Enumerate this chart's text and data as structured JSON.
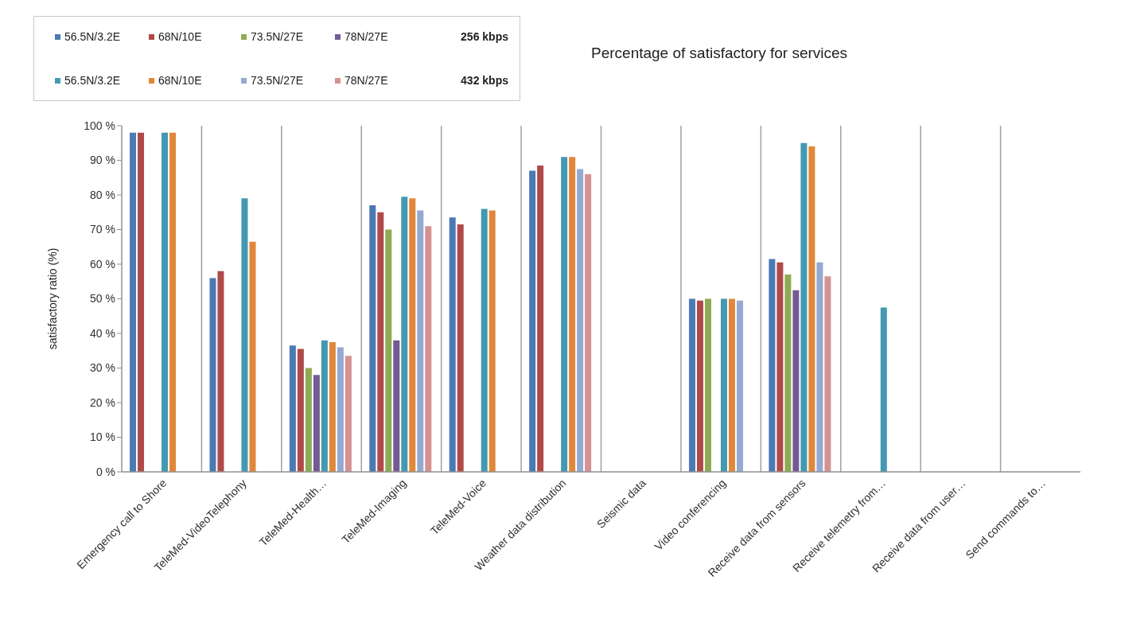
{
  "chart_data": {
    "type": "bar",
    "title": "Percentage of satisfactory for services",
    "ylabel": "satisfactory ratio (%)",
    "annotations": [
      "256 kbps",
      "432 kbps"
    ],
    "categories": [
      "Emergency call to Shore",
      "TeleMed-VideoTelephony",
      "TeleMed-Health…",
      "TeleMed-Imaging",
      "TeleMed-Voice",
      "Weather data distribution",
      "Seismic data",
      "Video conferencing",
      "Receive data from sensors",
      "Receive telemetry from…",
      "Receive data from user…",
      "Send commands to…"
    ],
    "series": [
      {
        "name": "56.5N/3.2E",
        "color": "#4a7ab5",
        "values": [
          98,
          56,
          36.5,
          77,
          73.5,
          87,
          null,
          50,
          61.5,
          null,
          null,
          null
        ]
      },
      {
        "name": "68N/10E",
        "color": "#b04a48",
        "values": [
          98,
          58,
          35.5,
          75,
          71.5,
          88.5,
          null,
          49.5,
          60.5,
          null,
          null,
          null
        ]
      },
      {
        "name": "73.5N/27E",
        "color": "#8eab52",
        "values": [
          null,
          null,
          30,
          70,
          null,
          null,
          null,
          50,
          57,
          null,
          null,
          null
        ]
      },
      {
        "name": "78N/27E",
        "color": "#735a94",
        "values": [
          null,
          null,
          28,
          38,
          null,
          null,
          null,
          null,
          52.5,
          null,
          null,
          null
        ]
      },
      {
        "name": "56.5N/3.2E",
        "color": "#4399b2",
        "values": [
          98,
          79,
          38,
          79.5,
          76,
          91,
          null,
          50,
          95,
          47.5,
          null,
          null
        ]
      },
      {
        "name": "68N/10E",
        "color": "#e1873a",
        "values": [
          98,
          66.5,
          37.5,
          79,
          75.5,
          91,
          null,
          50,
          94,
          null,
          null,
          null
        ]
      },
      {
        "name": "73.5N/27E",
        "color": "#93a9d2",
        "values": [
          null,
          null,
          36,
          75.5,
          null,
          87.5,
          null,
          49.5,
          60.5,
          null,
          null,
          null
        ]
      },
      {
        "name": "78N/27E",
        "color": "#d59291",
        "values": [
          null,
          null,
          33.5,
          71,
          null,
          86,
          null,
          null,
          56.5,
          null,
          null,
          null
        ]
      }
    ],
    "ylim": [
      0,
      100
    ],
    "yticks": [
      {
        "value": 0,
        "label": "0 %"
      },
      {
        "value": 10,
        "label": "10 %"
      },
      {
        "value": 20,
        "label": "20 %"
      },
      {
        "value": 30,
        "label": "30 %"
      },
      {
        "value": 40,
        "label": "40 %"
      },
      {
        "value": 50,
        "label": "50 %"
      },
      {
        "value": 60,
        "label": "60 %"
      },
      {
        "value": 70,
        "label": "70 %"
      },
      {
        "value": 80,
        "label": "80 %"
      },
      {
        "value": 90,
        "label": "90 %"
      },
      {
        "value": 100,
        "label": "100 %"
      }
    ],
    "grid": "x",
    "legend": "top left"
  }
}
